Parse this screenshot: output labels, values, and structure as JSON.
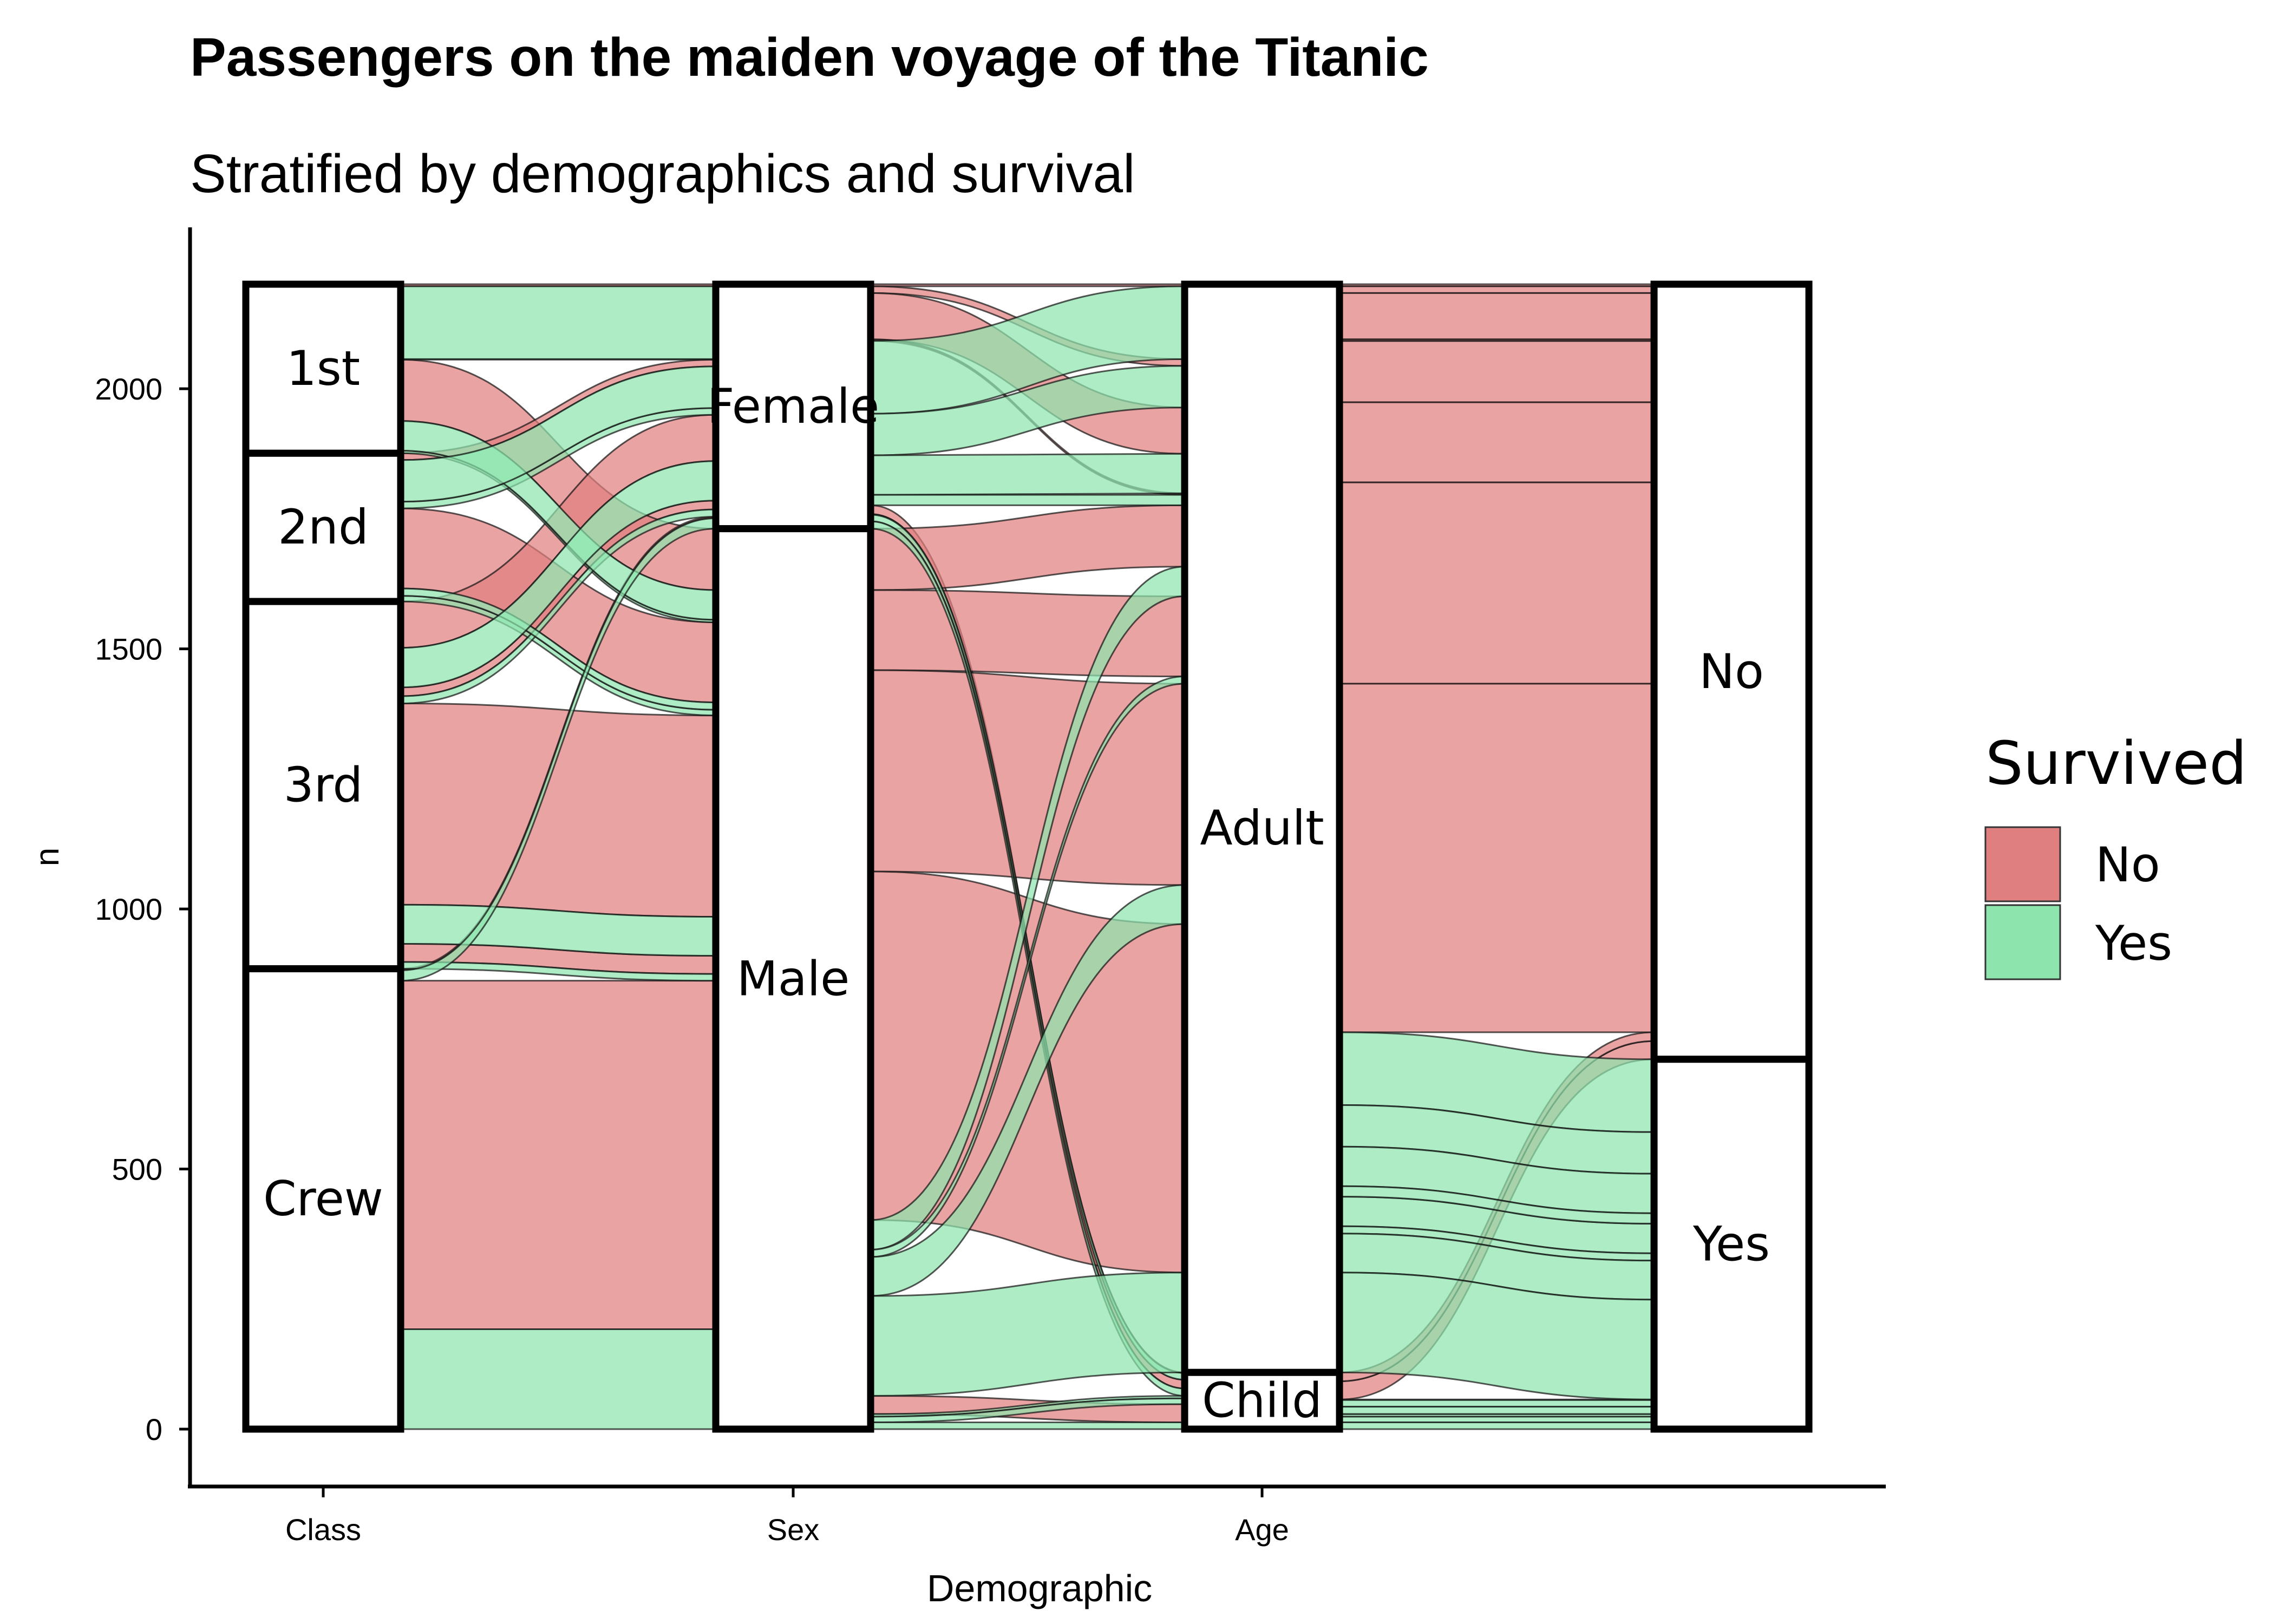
{
  "chart_data": {
    "type": "alluvial",
    "title": "Passengers on the maiden voyage of the Titanic",
    "subtitle": "Stratified by demographics and survival",
    "xlabel": "Demographic",
    "ylabel": "n",
    "ylim": [
      0,
      2201
    ],
    "yticks": [
      0,
      500,
      1000,
      1500,
      2000
    ],
    "axes": [
      "Class",
      "Sex",
      "Age",
      ""
    ],
    "axis_labels_shown": [
      "Class",
      "Sex",
      "Age"
    ],
    "strata": {
      "Class": [
        "1st",
        "2nd",
        "3rd",
        "Crew"
      ],
      "Sex": [
        "Female",
        "Male"
      ],
      "Age": [
        "Adult",
        "Child"
      ],
      "Survived": [
        "No",
        "Yes"
      ]
    },
    "legend": {
      "title": "Survived",
      "position": "right",
      "entries": [
        {
          "label": "No",
          "color": "#E07F7F"
        },
        {
          "label": "Yes",
          "color": "#8EE4AD"
        }
      ]
    },
    "colors": {
      "No": "#E07F7F",
      "Yes": "#8EE4AD",
      "No_dark": "#C8262A",
      "Yes_dark": "#35C86A"
    },
    "flows": [
      {
        "Class": "1st",
        "Sex": "Male",
        "Age": "Child",
        "Survived": "No",
        "n": 0
      },
      {
        "Class": "2nd",
        "Sex": "Male",
        "Age": "Child",
        "Survived": "No",
        "n": 0
      },
      {
        "Class": "3rd",
        "Sex": "Male",
        "Age": "Child",
        "Survived": "No",
        "n": 35
      },
      {
        "Class": "Crew",
        "Sex": "Male",
        "Age": "Child",
        "Survived": "No",
        "n": 0
      },
      {
        "Class": "1st",
        "Sex": "Female",
        "Age": "Child",
        "Survived": "No",
        "n": 0
      },
      {
        "Class": "2nd",
        "Sex": "Female",
        "Age": "Child",
        "Survived": "No",
        "n": 0
      },
      {
        "Class": "3rd",
        "Sex": "Female",
        "Age": "Child",
        "Survived": "No",
        "n": 17
      },
      {
        "Class": "Crew",
        "Sex": "Female",
        "Age": "Child",
        "Survived": "No",
        "n": 0
      },
      {
        "Class": "1st",
        "Sex": "Male",
        "Age": "Adult",
        "Survived": "No",
        "n": 118
      },
      {
        "Class": "2nd",
        "Sex": "Male",
        "Age": "Adult",
        "Survived": "No",
        "n": 154
      },
      {
        "Class": "3rd",
        "Sex": "Male",
        "Age": "Adult",
        "Survived": "No",
        "n": 387
      },
      {
        "Class": "Crew",
        "Sex": "Male",
        "Age": "Adult",
        "Survived": "No",
        "n": 670
      },
      {
        "Class": "1st",
        "Sex": "Female",
        "Age": "Adult",
        "Survived": "No",
        "n": 4
      },
      {
        "Class": "2nd",
        "Sex": "Female",
        "Age": "Adult",
        "Survived": "No",
        "n": 13
      },
      {
        "Class": "3rd",
        "Sex": "Female",
        "Age": "Adult",
        "Survived": "No",
        "n": 89
      },
      {
        "Class": "Crew",
        "Sex": "Female",
        "Age": "Adult",
        "Survived": "No",
        "n": 3
      },
      {
        "Class": "1st",
        "Sex": "Male",
        "Age": "Child",
        "Survived": "Yes",
        "n": 5
      },
      {
        "Class": "2nd",
        "Sex": "Male",
        "Age": "Child",
        "Survived": "Yes",
        "n": 11
      },
      {
        "Class": "3rd",
        "Sex": "Male",
        "Age": "Child",
        "Survived": "Yes",
        "n": 13
      },
      {
        "Class": "Crew",
        "Sex": "Male",
        "Age": "Child",
        "Survived": "Yes",
        "n": 0
      },
      {
        "Class": "1st",
        "Sex": "Female",
        "Age": "Child",
        "Survived": "Yes",
        "n": 1
      },
      {
        "Class": "2nd",
        "Sex": "Female",
        "Age": "Child",
        "Survived": "Yes",
        "n": 13
      },
      {
        "Class": "3rd",
        "Sex": "Female",
        "Age": "Child",
        "Survived": "Yes",
        "n": 14
      },
      {
        "Class": "Crew",
        "Sex": "Female",
        "Age": "Child",
        "Survived": "Yes",
        "n": 0
      },
      {
        "Class": "1st",
        "Sex": "Male",
        "Age": "Adult",
        "Survived": "Yes",
        "n": 57
      },
      {
        "Class": "2nd",
        "Sex": "Male",
        "Age": "Adult",
        "Survived": "Yes",
        "n": 14
      },
      {
        "Class": "3rd",
        "Sex": "Male",
        "Age": "Adult",
        "Survived": "Yes",
        "n": 75
      },
      {
        "Class": "Crew",
        "Sex": "Male",
        "Age": "Adult",
        "Survived": "Yes",
        "n": 192
      },
      {
        "Class": "1st",
        "Sex": "Female",
        "Age": "Adult",
        "Survived": "Yes",
        "n": 140
      },
      {
        "Class": "2nd",
        "Sex": "Female",
        "Age": "Adult",
        "Survived": "Yes",
        "n": 80
      },
      {
        "Class": "3rd",
        "Sex": "Female",
        "Age": "Adult",
        "Survived": "Yes",
        "n": 76
      },
      {
        "Class": "Crew",
        "Sex": "Female",
        "Age": "Adult",
        "Survived": "Yes",
        "n": 20
      }
    ]
  }
}
